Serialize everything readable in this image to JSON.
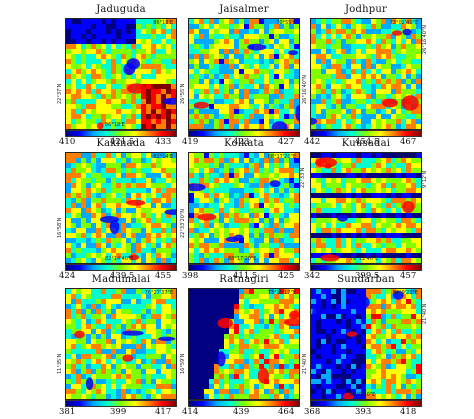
{
  "colormap": [
    "#000080",
    "#0000ff",
    "#00aaff",
    "#00ffcc",
    "#7fff00",
    "#ffff00",
    "#ff8000",
    "#ff0000",
    "#800000"
  ],
  "panels": [
    {
      "title": "Jaduguda",
      "coord_top": "86°18'E",
      "coord_left": "22°37'N",
      "coord_right": "",
      "coord_bottom": "86°18'E",
      "ticks": [
        "410",
        "421.5",
        "433"
      ],
      "dominant": "mix-a"
    },
    {
      "title": "Jaisalmer",
      "coord_top": "70°55'E",
      "coord_left": "26°55'N",
      "coord_right": "",
      "coord_bottom": "",
      "ticks": [
        "419",
        "423",
        "427"
      ],
      "dominant": "mix-b"
    },
    {
      "title": "Jodhpur",
      "coord_top": "73°02'40\"E",
      "coord_left": "26°16'40\"N",
      "coord_right": "26°16'40\"N",
      "coord_bottom": "",
      "ticks": [
        "442",
        "454.5",
        "467"
      ],
      "dominant": "mix-c"
    },
    {
      "title": "Kakinada",
      "coord_top": "82°14'E",
      "coord_left": "16°58'N",
      "coord_right": "",
      "coord_bottom": "82°14'40\"E",
      "ticks": [
        "424",
        "439.5",
        "455"
      ],
      "dominant": "mix-c"
    },
    {
      "title": "Kolkata",
      "coord_top": "88°17'20\"E",
      "coord_left": "22°33'20\"N",
      "coord_right": "22°33'N",
      "coord_bottom": "88°17'20\"E",
      "ticks": [
        "398",
        "411.5",
        "425"
      ],
      "dominant": "mix-b"
    },
    {
      "title": "Kuusadai",
      "coord_top": "79°12'E",
      "coord_left": "",
      "coord_right": "9°12'N",
      "coord_bottom": "79°12'40\"E",
      "ticks": [
        "342",
        "399.5",
        "457"
      ],
      "dominant": "stripes"
    },
    {
      "title": "Madumalai",
      "coord_top": "76°27'37\"E",
      "coord_left": "11°35'N",
      "coord_right": "",
      "coord_bottom": "",
      "ticks": [
        "381",
        "399",
        "417"
      ],
      "dominant": "mix-c"
    },
    {
      "title": "Ratnagiri",
      "coord_top": "73°15'17\"E",
      "coord_left": "16°59'N",
      "coord_right": "",
      "coord_bottom": "",
      "ticks": [
        "414",
        "439",
        "464"
      ],
      "dominant": "coast"
    },
    {
      "title": "Sundarban",
      "coord_top": "88°9'20\"E",
      "coord_left": "21°40'N",
      "coord_right": "21°40'N",
      "coord_bottom": "88°9'20\"E",
      "ticks": [
        "368",
        "393",
        "418"
      ],
      "dominant": "dark"
    }
  ]
}
